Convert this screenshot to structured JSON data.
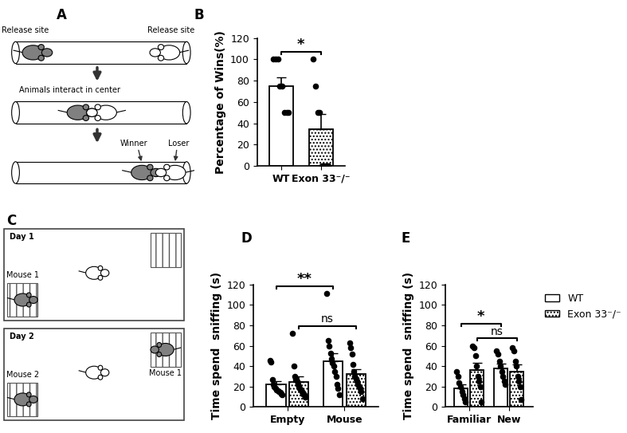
{
  "panel_labels": [
    "A",
    "B",
    "C",
    "D",
    "E"
  ],
  "diagram_a": {
    "release_left": "Release site",
    "release_right": "Release site",
    "center": "Animals interact in center",
    "winner": "Winner",
    "loser": "Loser"
  },
  "diagram_c": {
    "day1": {
      "title": "Day 1",
      "cage_label": "Mouse 1"
    },
    "day2": {
      "title": "Day 2",
      "cage_labels": [
        "Mouse 2",
        "Mouse 1"
      ]
    }
  },
  "chart_data": [
    {
      "type": "bar",
      "categories": [
        "WT",
        "Exon 33⁻/⁻"
      ],
      "values": [
        75,
        34.4
      ],
      "errors": [
        8.2,
        14.1
      ],
      "points": [
        [
          100,
          100,
          100,
          75,
          75,
          50,
          50,
          50
        ],
        [
          100,
          75,
          50,
          50,
          0,
          0,
          0,
          0
        ]
      ],
      "colors": [
        "#ffffff",
        "#ffffff"
      ],
      "ylabel": "Percentage of Wins(%)",
      "ylim": [
        0,
        120
      ],
      "yticks": [
        0,
        20,
        40,
        60,
        80,
        100,
        120
      ],
      "annotations": [
        {
          "text": "*",
          "between": [
            "WT",
            "Exon 33⁻/⁻"
          ]
        }
      ]
    },
    {
      "type": "bar",
      "categories": [
        "Empty",
        "Mouse"
      ],
      "series": [
        {
          "name": "WT",
          "color": "#ffffff",
          "values": [
            22,
            44.7
          ],
          "errors": [
            3.4,
            7.7
          ],
          "points": [
            [
              46,
              44,
              27,
              22,
              20,
              18,
              17,
              16,
              15,
              14,
              13,
              12
            ],
            [
              111,
              65,
              60,
              53,
              47,
              43,
              40,
              35,
              30,
              22,
              18,
              12
            ]
          ]
        },
        {
          "name": "Exon 33⁻/⁻",
          "color": "#ffffff",
          "values": [
            24.7,
            32
          ],
          "errors": [
            5.0,
            5.0
          ],
          "points": [
            [
              72,
              40,
              30,
              27,
              25,
              22,
              20,
              18,
              17,
              15,
              13,
              12,
              10
            ],
            [
              63,
              58,
              52,
              42,
              35,
              30,
              28,
              25,
              22,
              20,
              18,
              15,
              8
            ]
          ]
        }
      ],
      "ylabel": "Time spend  sniffing (s)",
      "ylim": [
        0,
        120
      ],
      "yticks": [
        0,
        20,
        40,
        60,
        80,
        100,
        120
      ],
      "annotations": [
        {
          "text": "**",
          "series": "WT",
          "between": [
            "Empty",
            "Mouse"
          ]
        },
        {
          "text": "ns",
          "series": "Exon 33⁻/⁻",
          "between": [
            "Empty",
            "Mouse"
          ]
        }
      ]
    },
    {
      "type": "bar",
      "categories": [
        "Familiar",
        "New"
      ],
      "series": [
        {
          "name": "WT",
          "color": "#ffffff",
          "values": [
            18.6,
            38
          ],
          "errors": [
            3.8,
            4.3
          ],
          "points": [
            [
              35,
              30,
              24,
              20,
              15,
              12,
              8,
              5
            ],
            [
              55,
              52,
              45,
              40,
              35,
              30,
              25,
              22
            ]
          ]
        },
        {
          "name": "Exon 33⁻/⁻",
          "color": "#ffffff",
          "values": [
            36,
            35
          ],
          "errors": [
            7.1,
            6.5
          ],
          "points": [
            [
              60,
              58,
              50,
              40,
              30,
              25,
              20,
              5
            ],
            [
              58,
              55,
              45,
              40,
              30,
              25,
              20,
              7
            ]
          ]
        }
      ],
      "ylabel": "Time spend  sniffing (s)",
      "ylim": [
        0,
        120
      ],
      "yticks": [
        0,
        20,
        40,
        60,
        80,
        100,
        120
      ],
      "legend": "upper left",
      "annotations": [
        {
          "text": "ns",
          "series": "Exon 33⁻/⁻",
          "between": [
            "Familiar",
            "New"
          ]
        },
        {
          "text": "*",
          "series": "WT",
          "between": [
            "Familiar",
            "New"
          ]
        }
      ]
    }
  ]
}
